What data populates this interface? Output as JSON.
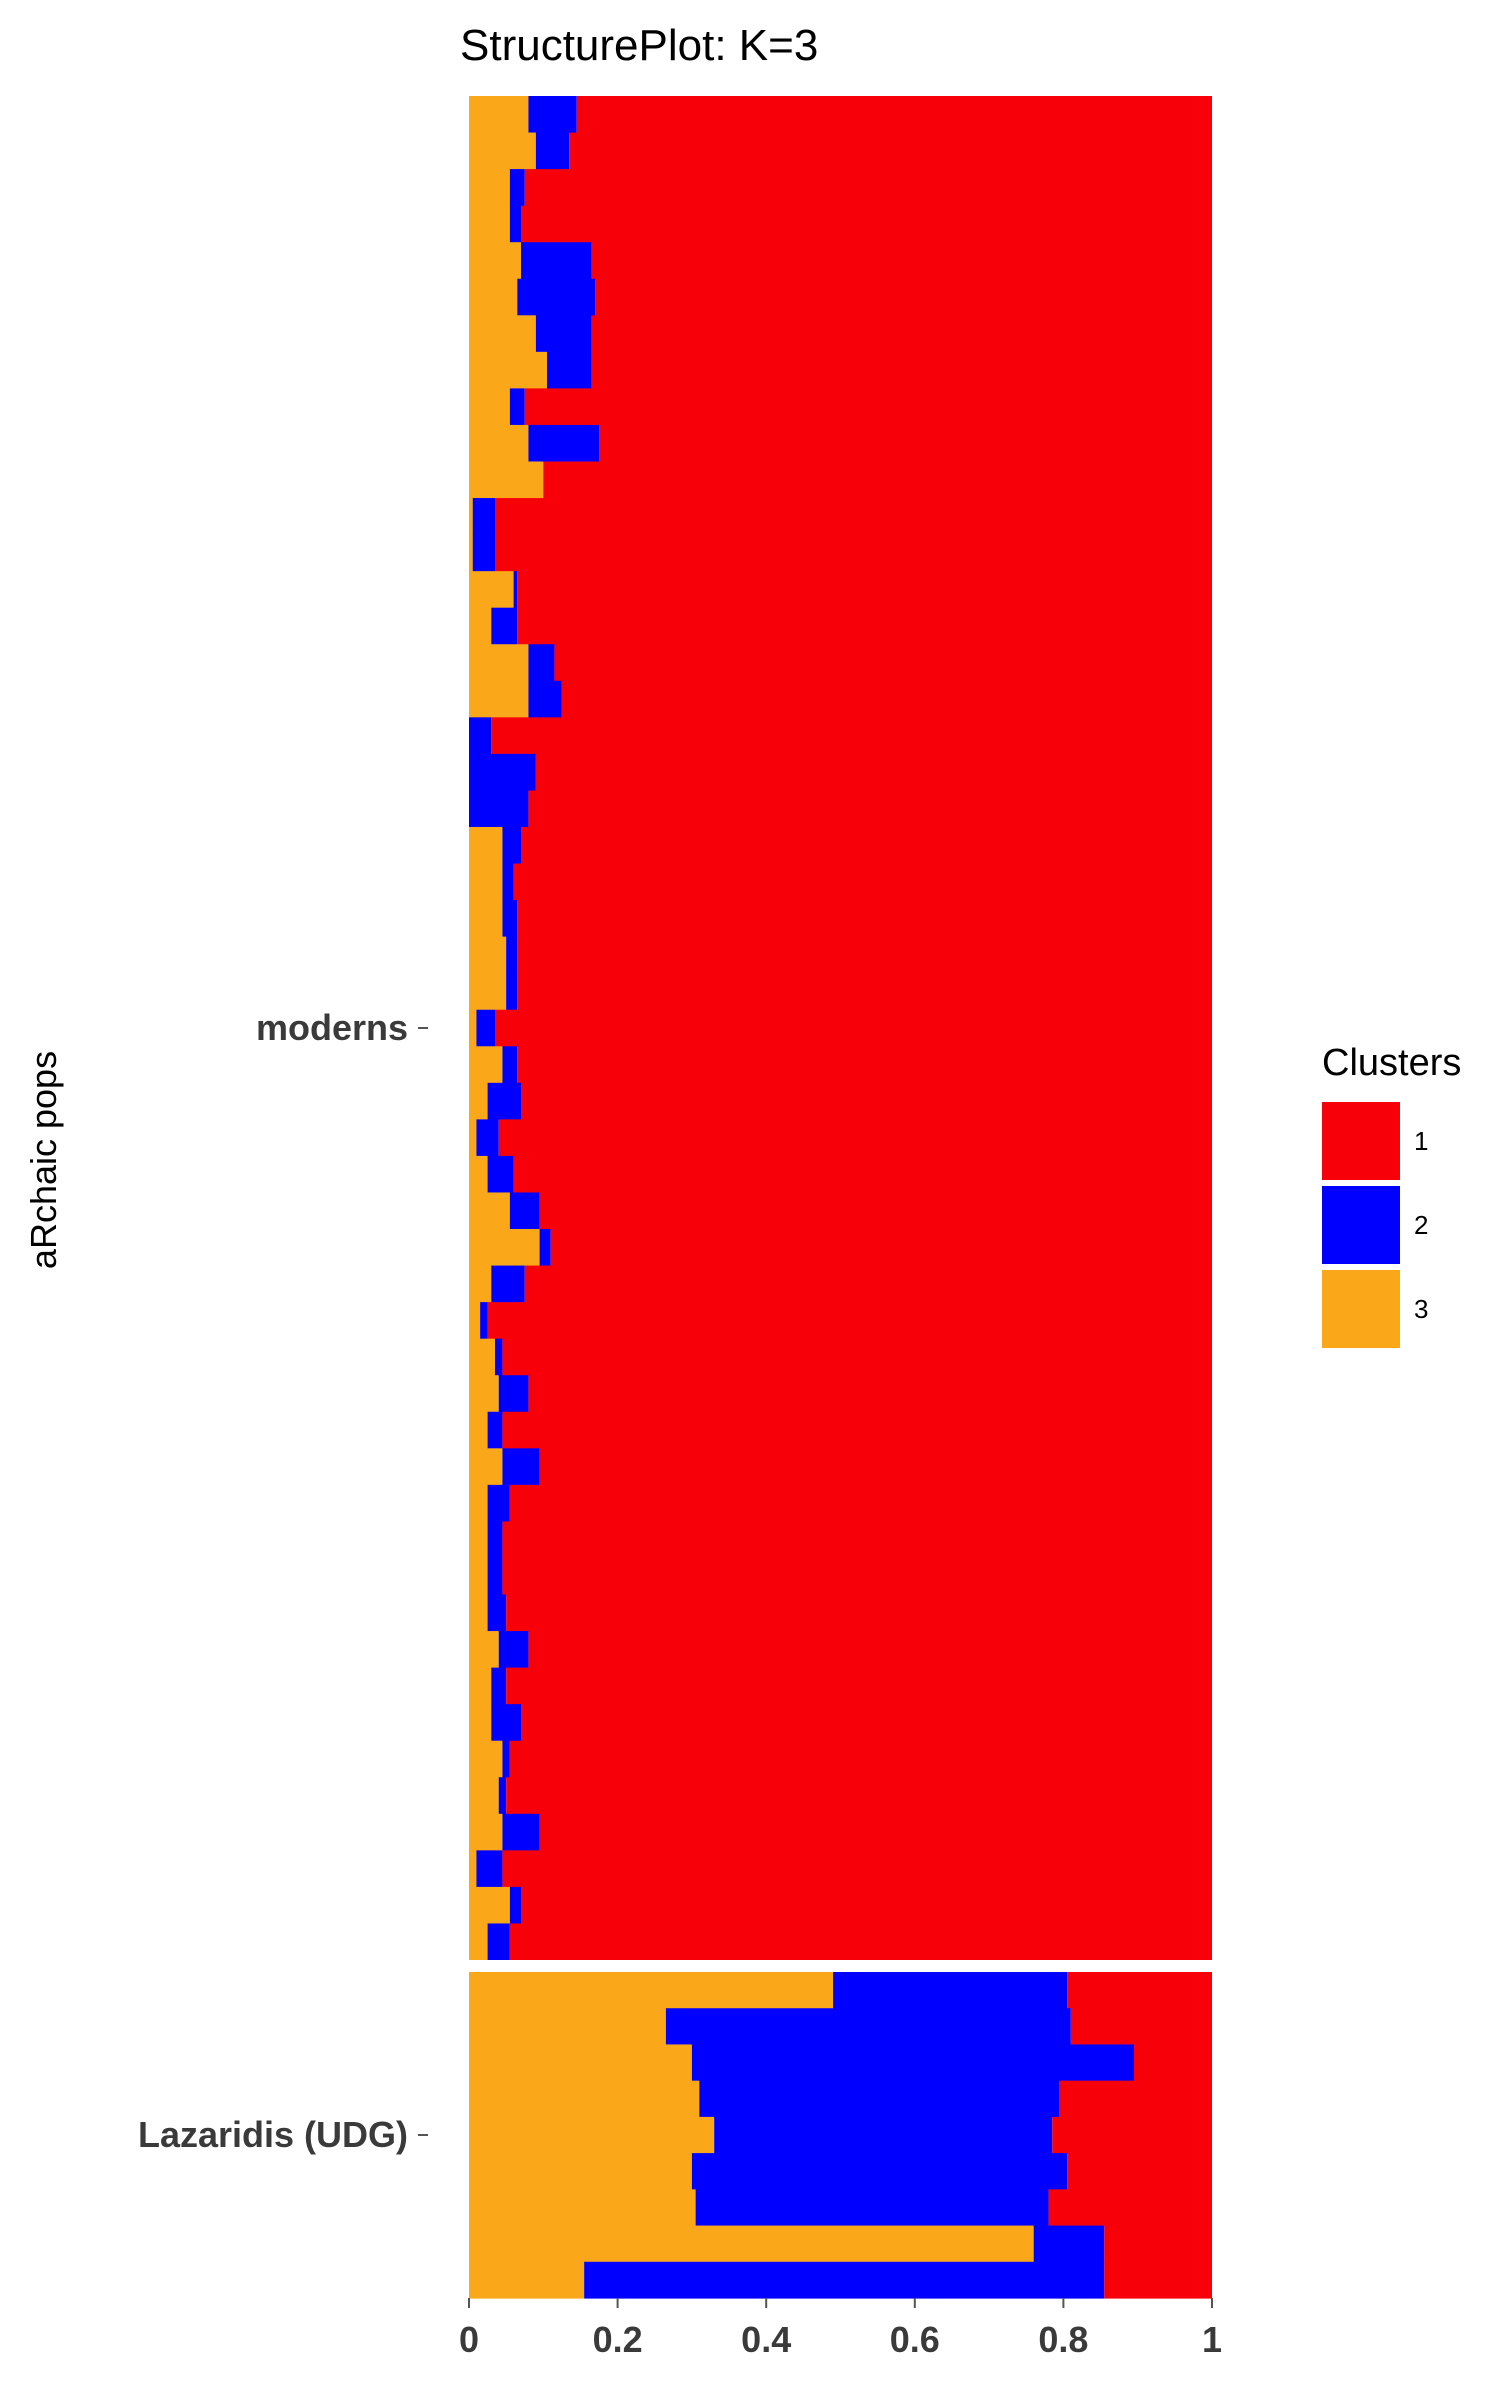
{
  "chart_data": {
    "type": "bar",
    "orientation": "horizontal",
    "stacked": true,
    "title": "StructurePlot: K=3",
    "ylabel": "aRchaic pops",
    "xlabel": "",
    "xlim": [
      0,
      1
    ],
    "x_ticks": [
      "0",
      "0.2",
      "0.4",
      "0.6",
      "0.8",
      "1"
    ],
    "x_tick_values": [
      0,
      0.2,
      0.4,
      0.6,
      0.8,
      1
    ],
    "grid": false,
    "legend": {
      "title": "Clusters",
      "position": "right",
      "entries": [
        {
          "label": "1",
          "color": "#f8000a"
        },
        {
          "label": "2",
          "color": "#0000ff"
        },
        {
          "label": "3",
          "color": "#faa81a"
        }
      ]
    },
    "series_order": [
      "3",
      "2",
      "1"
    ],
    "facets": [
      {
        "name": "moderns",
        "samples": [
          [
            0.08,
            0.065
          ],
          [
            0.09,
            0.045
          ],
          [
            0.055,
            0.02
          ],
          [
            0.055,
            0.015
          ],
          [
            0.07,
            0.095
          ],
          [
            0.065,
            0.105
          ],
          [
            0.09,
            0.075
          ],
          [
            0.105,
            0.06
          ],
          [
            0.055,
            0.02
          ],
          [
            0.08,
            0.095
          ],
          [
            0.1,
            0.0
          ],
          [
            0.005,
            0.03
          ],
          [
            0.005,
            0.03
          ],
          [
            0.06,
            0.005
          ],
          [
            0.03,
            0.035
          ],
          [
            0.08,
            0.035
          ],
          [
            0.08,
            0.045
          ],
          [
            0.0,
            0.03
          ],
          [
            0.0,
            0.09
          ],
          [
            0.0,
            0.08
          ],
          [
            0.045,
            0.025
          ],
          [
            0.045,
            0.015
          ],
          [
            0.045,
            0.02
          ],
          [
            0.05,
            0.015
          ],
          [
            0.05,
            0.015
          ],
          [
            0.01,
            0.025
          ],
          [
            0.045,
            0.02
          ],
          [
            0.025,
            0.045
          ],
          [
            0.01,
            0.03
          ],
          [
            0.025,
            0.035
          ],
          [
            0.055,
            0.04
          ],
          [
            0.095,
            0.015
          ],
          [
            0.03,
            0.045
          ],
          [
            0.015,
            0.01
          ],
          [
            0.035,
            0.01
          ],
          [
            0.04,
            0.04
          ],
          [
            0.025,
            0.02
          ],
          [
            0.045,
            0.05
          ],
          [
            0.025,
            0.03
          ],
          [
            0.025,
            0.02
          ],
          [
            0.025,
            0.02
          ],
          [
            0.025,
            0.025
          ],
          [
            0.04,
            0.04
          ],
          [
            0.03,
            0.02
          ],
          [
            0.03,
            0.04
          ],
          [
            0.045,
            0.01
          ],
          [
            0.04,
            0.01
          ],
          [
            0.045,
            0.05
          ],
          [
            0.01,
            0.035
          ],
          [
            0.055,
            0.015
          ],
          [
            0.025,
            0.03
          ]
        ]
      },
      {
        "name": "Lazaridis (UDG)",
        "samples": [
          [
            0.49,
            0.315
          ],
          [
            0.265,
            0.545
          ],
          [
            0.3,
            0.595
          ],
          [
            0.31,
            0.485
          ],
          [
            0.33,
            0.455
          ],
          [
            0.3,
            0.505
          ],
          [
            0.305,
            0.475
          ],
          [
            0.76,
            0.095
          ],
          [
            0.155,
            0.7
          ]
        ]
      }
    ]
  }
}
